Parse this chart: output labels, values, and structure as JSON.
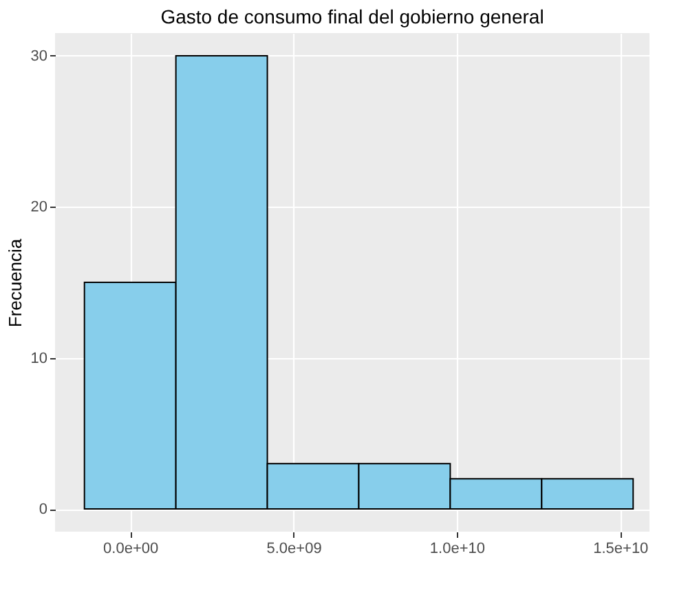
{
  "chart_data": {
    "type": "histogram",
    "title": "Gasto de consumo final del gobierno general",
    "ylabel": "Frecuencia",
    "bins": [
      -1400000000.0,
      1400000000.0,
      4200000000.0,
      7000000000.0,
      9800000000.0,
      12600000000.0,
      15400000000.0
    ],
    "values": [
      15,
      30,
      3,
      3,
      2,
      2
    ],
    "color": "#87ceeb",
    "xlim": [
      -2300000000.0,
      15900000000.0
    ],
    "xticks": [
      {
        "value": 0,
        "label": "0.0e+00"
      },
      {
        "value": 5000000000.0,
        "label": "5.0e+09"
      },
      {
        "value": 10000000000.0,
        "label": "1.0e+10"
      },
      {
        "value": 15000000000.0,
        "label": "1.5e+10"
      }
    ],
    "ylim": [
      -1.5,
      31.5
    ],
    "yticks": [
      0,
      10,
      20,
      30
    ],
    "grid": true
  }
}
